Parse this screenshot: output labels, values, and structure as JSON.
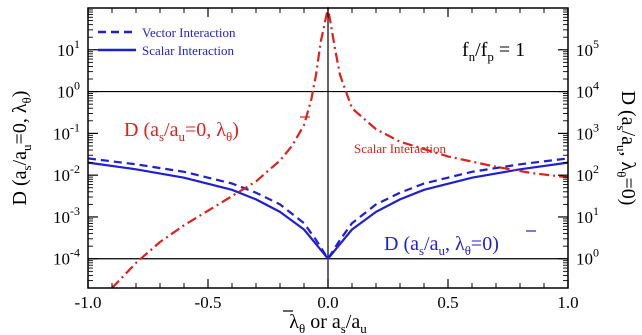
{
  "chart_data": {
    "type": "line",
    "panel_label": {
      "main": "f",
      "sub1": "n",
      "mid": "/f",
      "sub2": "p",
      "tail": " = 1"
    },
    "xaxis": {
      "label_main": "λ",
      "label_sub": "θ",
      "label_or": " or a",
      "label_sub_s": "s",
      "label_slash": "/a",
      "label_sub_u": "u",
      "lim": [
        -1.0,
        1.0
      ],
      "ticks": [
        -1.0,
        -0.5,
        0.0,
        0.5,
        1.0
      ],
      "tick_labels": [
        "-1.0",
        "-0.5",
        "0.0",
        "0.5",
        "1.0"
      ]
    },
    "yaxis_left": {
      "label": "D (a_s/a_u=0, λ̄_θ)",
      "scale": "log",
      "lim_exp": [
        -4.7,
        2.0
      ],
      "ticks_exp": [
        -4,
        -3,
        -2,
        -1,
        0,
        1
      ],
      "tick_labels": [
        {
          "base": "10",
          "exp": "-4"
        },
        {
          "base": "10",
          "exp": "-3"
        },
        {
          "base": "10",
          "exp": "-2"
        },
        {
          "base": "10",
          "exp": "-1"
        },
        {
          "base": "10",
          "exp": "0"
        },
        {
          "base": "10",
          "exp": "1"
        }
      ]
    },
    "yaxis_right": {
      "label": "D (a_s/a_u, λ̄_θ=0)",
      "scale": "log",
      "lim_exp": [
        -0.7,
        6.0
      ],
      "ticks_exp": [
        0,
        1,
        2,
        3,
        4,
        5
      ],
      "tick_labels": [
        {
          "base": "10",
          "exp": "0"
        },
        {
          "base": "10",
          "exp": "1"
        },
        {
          "base": "10",
          "exp": "2"
        },
        {
          "base": "10",
          "exp": "3"
        },
        {
          "base": "10",
          "exp": "4"
        },
        {
          "base": "10",
          "exp": "5"
        }
      ]
    },
    "legend": {
      "position": "top-left",
      "entries": [
        {
          "label": "Vector Interaction",
          "style": "dashed",
          "color": "#1f1fd6"
        },
        {
          "label": "Scalar Interaction",
          "style": "solid",
          "color": "#1f1fd6"
        }
      ]
    },
    "reference_lines": {
      "horizontal_exp": [
        0,
        -4
      ],
      "vertical_x": [
        0
      ]
    },
    "annotations": [
      {
        "text": "D (a_s/a_u=0, λ̄_θ)",
        "color": "#e0201b"
      },
      {
        "text": "Scalar Interaction",
        "color": "#e0201b"
      },
      {
        "text": "D (a_s/a_u, λ̄_θ=0)",
        "color": "#1f1fd6"
      }
    ],
    "series": [
      {
        "name": "Vector Interaction",
        "axis": "left",
        "color": "#1f1fd6",
        "style": "dashed",
        "x": [
          -1.0,
          -0.8,
          -0.6,
          -0.4,
          -0.3,
          -0.2,
          -0.1,
          -0.05,
          0.0,
          0.05,
          0.1,
          0.2,
          0.3,
          0.4,
          0.6,
          0.8,
          1.0
        ],
        "y_exp": [
          -1.6,
          -1.74,
          -1.92,
          -2.2,
          -2.42,
          -2.7,
          -3.15,
          -3.55,
          -4.0,
          -3.55,
          -3.15,
          -2.7,
          -2.42,
          -2.2,
          -1.92,
          -1.74,
          -1.6
        ]
      },
      {
        "name": "Scalar Interaction",
        "axis": "left",
        "color": "#1f1fd6",
        "style": "solid",
        "x": [
          -1.0,
          -0.8,
          -0.6,
          -0.4,
          -0.3,
          -0.2,
          -0.1,
          -0.05,
          0.0,
          0.05,
          0.1,
          0.2,
          0.3,
          0.4,
          0.6,
          0.8,
          1.0
        ],
        "y_exp": [
          -1.7,
          -1.86,
          -2.06,
          -2.35,
          -2.58,
          -2.88,
          -3.3,
          -3.65,
          -4.0,
          -3.65,
          -3.3,
          -2.88,
          -2.58,
          -2.35,
          -2.06,
          -1.86,
          -1.7
        ]
      },
      {
        "name": "Scalar Interaction",
        "axis": "right",
        "color": "#e0201b",
        "style": "dashdot",
        "x": [
          -0.9,
          -0.85,
          -0.8,
          -0.7,
          -0.6,
          -0.5,
          -0.4,
          -0.3,
          -0.2,
          -0.15,
          -0.1,
          -0.07,
          -0.05,
          -0.03,
          0.0,
          0.03,
          0.05,
          0.1,
          0.2,
          0.3,
          0.5,
          0.7,
          0.85,
          1.0
        ],
        "y_exp": [
          -0.7,
          -0.4,
          -0.1,
          0.4,
          0.8,
          1.15,
          1.5,
          1.85,
          2.35,
          2.7,
          3.2,
          3.8,
          4.4,
          5.2,
          6.0,
          5.0,
          4.4,
          3.6,
          3.1,
          2.8,
          2.45,
          2.2,
          2.05,
          1.95
        ]
      }
    ]
  }
}
